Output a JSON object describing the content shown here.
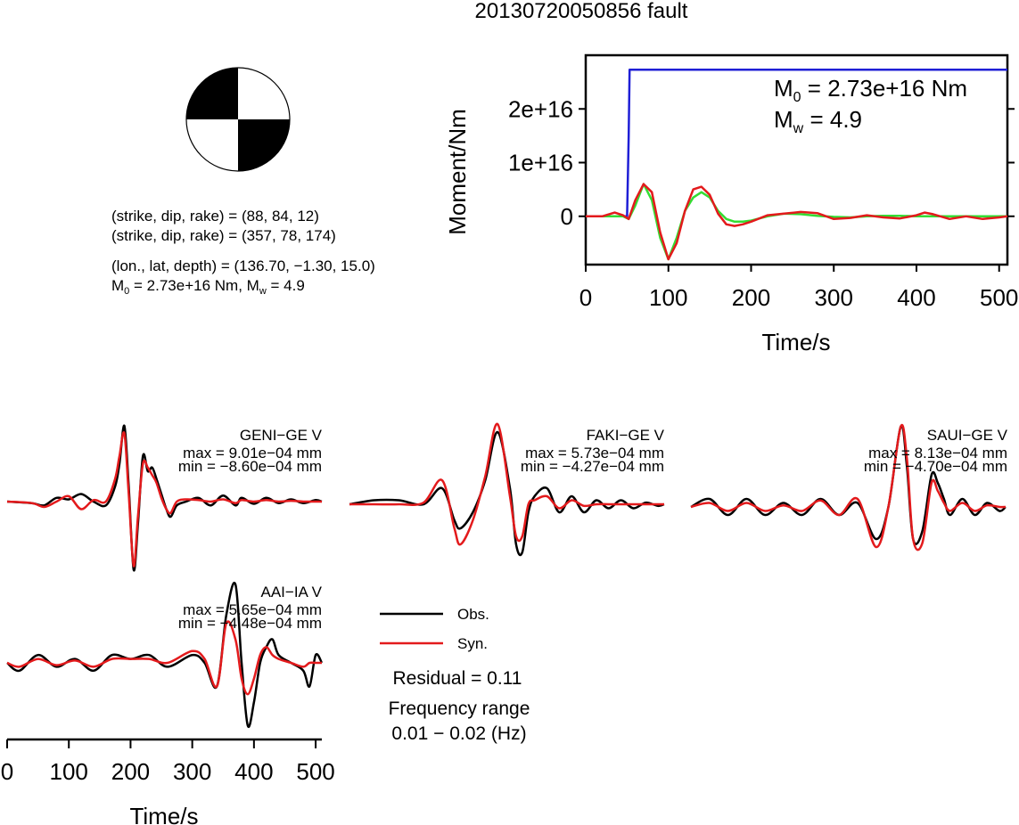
{
  "title": "20130720050856 fault",
  "colors": {
    "obs": "#000000",
    "syn": "#e31a1c",
    "moment": "#1f1fd6",
    "stf": "#33dd33"
  },
  "mechanism": {
    "line1": "(strike, dip, rake) = (88, 84, 12)",
    "line2": "(strike, dip, rake) = (357, 78, 174)",
    "line3": "(lon., lat, depth) = (136.70, −1.30, 15.0)",
    "m0_line": {
      "a": "M",
      "a_sub": "0",
      "b": " = 2.73e+16 Nm, M",
      "b_sub": "w",
      "c": " = 4.9"
    }
  },
  "moment_plot": {
    "ylabel": "Moment/Nm",
    "xlabel": "Time/s",
    "yticks": [
      "0",
      "1e+16",
      "2e+16"
    ],
    "xticks": [
      "0",
      "100",
      "200",
      "300",
      "400",
      "500"
    ],
    "annot1": {
      "a": "M",
      "sub": "0",
      "b": " = 2.73e+16 Nm"
    },
    "annot2": {
      "a": "M",
      "sub": "w",
      "b": " = 4.9"
    }
  },
  "waveforms": {
    "xlabel": "Time/s",
    "xticks": [
      "0",
      "100",
      "200",
      "300",
      "400",
      "500"
    ],
    "stations": [
      {
        "name": "GENI−GE V",
        "max": "max = 9.01e−04 mm",
        "min": "min = −8.60e−04 mm"
      },
      {
        "name": "FAKI−GE V",
        "max": "max = 5.73e−04 mm",
        "min": "min = −4.27e−04 mm"
      },
      {
        "name": "SAUI−GE V",
        "max": "max = 8.13e−04 mm",
        "min": "min = −4.70e−04 mm"
      },
      {
        "name": "AAI−IA V",
        "max": "max = 5.65e−04 mm",
        "min": "min = −4.48e−04 mm"
      }
    ]
  },
  "legend": {
    "obs": "Obs.",
    "syn": "Syn.",
    "residual": "Residual = 0.11",
    "freq1": "Frequency range",
    "freq2": "0.01 − 0.02 (Hz)"
  },
  "chart_data": [
    {
      "type": "line",
      "ylabel": "Moment/Nm",
      "xlabel": "Time/s",
      "xlim": [
        0,
        510
      ],
      "ylim": [
        -9000000000000000.0,
        3e+16
      ],
      "series": [
        {
          "x": [
            0,
            50,
            52,
            53,
            510
          ],
          "y": [
            0,
            0,
            1.5e+16,
            2.73e+16,
            2.73e+16
          ]
        },
        {
          "x": [
            0,
            35,
            45,
            52,
            60,
            70,
            80,
            90,
            100,
            110,
            120,
            130,
            140,
            150,
            160,
            170,
            180,
            190,
            200,
            220,
            240,
            260,
            280,
            300,
            320,
            340,
            360,
            380,
            400,
            420,
            440,
            460,
            480,
            500,
            510
          ],
          "y": [
            0,
            0,
            0,
            -500000000000000.0,
            2000000000000000.0,
            6000000000000000.0,
            3000000000000000.0,
            -4000000000000000.0,
            -8000000000000000.0,
            -4000000000000000.0,
            1000000000000000.0,
            3500000000000000.0,
            4500000000000000.0,
            3500000000000000.0,
            1000000000000000.0,
            -500000000000000.0,
            -1000000000000000.0,
            -1000000000000000.0,
            -800000000000000.0,
            0.0,
            500000000000000.0,
            400000000000000.0,
            100000000000000.0,
            -100000000000000.0,
            -200000000000000.0,
            0.0,
            100000000000000.0,
            100000000000000.0,
            0.0,
            0.0,
            0.0,
            0.0,
            0.0,
            0.0,
            0.0
          ]
        },
        {
          "x": [
            0,
            20,
            35,
            45,
            52,
            60,
            70,
            80,
            90,
            100,
            110,
            120,
            130,
            140,
            150,
            160,
            170,
            180,
            190,
            200,
            220,
            240,
            260,
            280,
            300,
            320,
            340,
            360,
            380,
            400,
            410,
            420,
            440,
            460,
            480,
            500,
            510
          ],
          "y": [
            0,
            0,
            700000000000000.0,
            200000000000000.0,
            -500000000000000.0,
            3000000000000000.0,
            6000000000000000.0,
            4500000000000000.0,
            -3000000000000000.0,
            -8000000000000000.0,
            -5000000000000000.0,
            1000000000000000.0,
            5000000000000000.0,
            5500000000000000.0,
            4000000000000000.0,
            500000000000000.0,
            -1500000000000000.0,
            -1800000000000000.0,
            -1500000000000000.0,
            -1000000000000000.0,
            200000000000000.0,
            500000000000000.0,
            800000000000000.0,
            600000000000000.0,
            -500000000000000.0,
            -300000000000000.0,
            200000000000000.0,
            -200000000000000.0,
            -400000000000000.0,
            200000000000000.0,
            700000000000000.0,
            400000000000000.0,
            -500000000000000.0,
            0.0,
            -500000000000000.0,
            -200000000000000.0,
            0.0
          ]
        }
      ]
    },
    {
      "type": "line",
      "xlabel": "Time/s",
      "xlim": [
        0,
        510
      ],
      "ylim": [
        -1,
        1
      ],
      "panels": [
        {
          "station": "GENI−GE V",
          "obs": {
            "x": [
              0,
              40,
              60,
              80,
              100,
              120,
              140,
              160,
              175,
              182,
              190,
              197,
              205,
              212,
              220,
              228,
              235,
              242,
              250,
              258,
              265,
              275,
              290,
              310,
              330,
              350,
              370,
              380,
              400,
              420,
              440,
              460,
              480,
              500,
              510
            ],
            "y": [
              0,
              -0.02,
              -0.05,
              0.05,
              0.03,
              0.1,
              0.0,
              -0.05,
              0.2,
              0.5,
              1.0,
              0.2,
              -0.9,
              -0.3,
              0.6,
              0.4,
              0.45,
              0.3,
              0.1,
              -0.1,
              -0.2,
              -0.05,
              0.0,
              0.05,
              -0.05,
              0.08,
              -0.05,
              0.05,
              -0.03,
              0.05,
              -0.02,
              0.03,
              -0.02,
              0.02,
              0.0
            ]
          },
          "syn": {
            "x": [
              0,
              40,
              60,
              80,
              100,
              120,
              140,
              160,
              175,
              182,
              190,
              197,
              205,
              212,
              220,
              228,
              235,
              242,
              250,
              258,
              265,
              275,
              290,
              310,
              330,
              350,
              370,
              380,
              400,
              420,
              440,
              460,
              480,
              500,
              510
            ],
            "y": [
              0,
              -0.02,
              -0.07,
              0.0,
              0.07,
              -0.1,
              0.02,
              0.0,
              0.3,
              0.6,
              0.9,
              0.1,
              -0.85,
              -0.2,
              0.5,
              0.45,
              0.35,
              0.25,
              0.05,
              -0.1,
              -0.15,
              0.0,
              0.03,
              0.02,
              0.0,
              0.03,
              -0.02,
              0.02,
              0.0,
              0.02,
              0.0,
              0.01,
              0.0,
              0.0,
              0.0
            ]
          }
        },
        {
          "station": "FAKI−GE V",
          "obs": {
            "x": [
              0,
              40,
              80,
              120,
              150,
              170,
              180,
              200,
              220,
              240,
              260,
              270,
              280,
              290,
              300,
              320,
              340,
              360,
              380,
              400,
              420,
              440,
              460,
              480,
              500,
              510
            ],
            "y": [
              0,
              0.05,
              0.05,
              0.0,
              0.2,
              -0.2,
              -0.3,
              -0.1,
              0.3,
              0.9,
              0.2,
              -0.5,
              -0.6,
              -0.1,
              0.1,
              0.2,
              -0.1,
              0.1,
              -0.1,
              0.05,
              -0.05,
              0.05,
              -0.05,
              0.02,
              -0.02,
              0.0
            ]
          },
          "syn": {
            "x": [
              0,
              40,
              80,
              120,
              150,
              170,
              180,
              200,
              220,
              240,
              260,
              270,
              280,
              290,
              300,
              320,
              340,
              360,
              380,
              400,
              420,
              440,
              460,
              480,
              500,
              510
            ],
            "y": [
              0,
              0.0,
              0.0,
              0.02,
              0.3,
              -0.3,
              -0.5,
              -0.2,
              0.35,
              1.0,
              0.1,
              -0.4,
              -0.4,
              0.0,
              0.05,
              0.1,
              -0.05,
              0.05,
              -0.02,
              0.0,
              0.0,
              0.0,
              0.0,
              0.0,
              0.0,
              0.0
            ]
          }
        },
        {
          "station": "SAUI−GE V",
          "obs": {
            "x": [
              0,
              30,
              60,
              90,
              120,
              150,
              180,
              210,
              240,
              270,
              300,
              320,
              340,
              350,
              360,
              375,
              390,
              400,
              410,
              420,
              440,
              460,
              480,
              500,
              510
            ],
            "y": [
              0,
              0.1,
              -0.1,
              0.1,
              -0.1,
              0.05,
              -0.1,
              0.1,
              -0.1,
              0.05,
              -0.4,
              0.0,
              1.0,
              0.5,
              -0.4,
              -0.3,
              0.4,
              0.3,
              0.1,
              -0.1,
              0.1,
              -0.1,
              0.05,
              -0.05,
              0.0
            ]
          },
          "syn": {
            "x": [
              0,
              30,
              60,
              90,
              120,
              150,
              180,
              210,
              240,
              270,
              300,
              320,
              340,
              350,
              360,
              375,
              390,
              400,
              410,
              420,
              440,
              460,
              480,
              500,
              510
            ],
            "y": [
              0,
              0.05,
              -0.05,
              0.05,
              -0.05,
              0.02,
              -0.05,
              0.08,
              -0.1,
              0.1,
              -0.5,
              0.0,
              1.0,
              0.6,
              -0.4,
              -0.45,
              0.3,
              0.2,
              0.05,
              -0.05,
              0.05,
              -0.05,
              0.02,
              0.0,
              0.0
            ]
          }
        },
        {
          "station": "AAI−IA V",
          "obs": {
            "x": [
              0,
              20,
              50,
              80,
              110,
              140,
              170,
              200,
              230,
              260,
              300,
              320,
              340,
              355,
              370,
              380,
              390,
              400,
              410,
              420,
              430,
              440,
              460,
              480,
              490,
              500,
              510
            ],
            "y": [
              0,
              -0.1,
              0.1,
              -0.05,
              0.05,
              -0.1,
              0.1,
              0.05,
              0.1,
              -0.05,
              0.1,
              0.0,
              -0.3,
              0.6,
              1.0,
              0.0,
              -0.8,
              -0.5,
              0.0,
              0.2,
              0.3,
              0.1,
              0.0,
              -0.1,
              -0.3,
              0.1,
              0.0
            ]
          },
          "syn": {
            "x": [
              0,
              20,
              50,
              80,
              110,
              140,
              170,
              200,
              230,
              260,
              300,
              320,
              340,
              355,
              370,
              380,
              390,
              400,
              410,
              420,
              430,
              440,
              460,
              480,
              490,
              500,
              510
            ],
            "y": [
              0,
              -0.05,
              0.05,
              -0.03,
              0.03,
              -0.05,
              0.05,
              0.05,
              0.05,
              0.0,
              0.15,
              0.05,
              -0.3,
              0.5,
              0.3,
              -0.2,
              -0.4,
              -0.2,
              0.1,
              0.2,
              0.1,
              0.05,
              0.0,
              -0.05,
              0.0,
              0.0,
              0.0
            ]
          }
        }
      ]
    }
  ]
}
